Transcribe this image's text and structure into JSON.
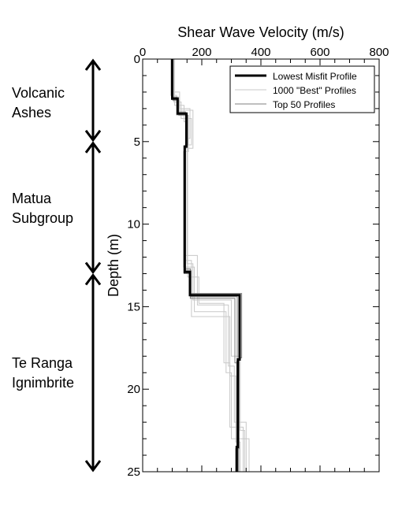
{
  "chart_data": {
    "type": "line",
    "title": "",
    "xlabel": "Shear Wave Velocity (m/s)",
    "ylabel": "Depth (m)",
    "xlim": [
      0,
      800
    ],
    "ylim": [
      0,
      25
    ],
    "y_inverted": true,
    "x_axis_position": "top",
    "grid": false,
    "legend_position": "top-right",
    "xticks": [
      "0",
      "200",
      "400",
      "600",
      "800"
    ],
    "yticks": [
      "0",
      "5",
      "10",
      "15",
      "20",
      "25"
    ],
    "series": [
      {
        "name": "Lowest Misfit Profile",
        "color": "#000000",
        "points": [
          [
            100,
            0
          ],
          [
            100,
            2.4
          ],
          [
            118,
            2.4
          ],
          [
            118,
            3.3
          ],
          [
            148,
            3.3
          ],
          [
            148,
            5.3
          ],
          [
            142,
            5.3
          ],
          [
            142,
            12.9
          ],
          [
            160,
            12.9
          ],
          [
            160,
            14.3
          ],
          [
            328,
            14.3
          ],
          [
            328,
            18.2
          ],
          [
            322,
            18.2
          ],
          [
            322,
            23.5
          ],
          [
            318,
            23.5
          ],
          [
            318,
            25
          ]
        ]
      },
      {
        "name": "1000 \"Best\" Profiles",
        "color": "#c8c8c8",
        "profiles": [
          [
            [
              100,
              0
            ],
            [
              100,
              2.0
            ],
            [
              125,
              2.0
            ],
            [
              125,
              3.0
            ],
            [
              160,
              3.0
            ],
            [
              160,
              4.8
            ],
            [
              150,
              4.8
            ],
            [
              150,
              12.4
            ],
            [
              170,
              12.4
            ],
            [
              170,
              14.6
            ],
            [
              300,
              14.6
            ],
            [
              300,
              18.0
            ],
            [
              330,
              18.0
            ],
            [
              330,
              22.5
            ],
            [
              345,
              22.5
            ],
            [
              345,
              25
            ]
          ],
          [
            [
              105,
              0
            ],
            [
              105,
              2.6
            ],
            [
              130,
              2.6
            ],
            [
              130,
              3.6
            ],
            [
              165,
              3.6
            ],
            [
              165,
              5.2
            ],
            [
              145,
              5.2
            ],
            [
              145,
              11.9
            ],
            [
              185,
              11.9
            ],
            [
              185,
              14.9
            ],
            [
              290,
              14.9
            ],
            [
              290,
              18.6
            ],
            [
              310,
              18.6
            ],
            [
              310,
              22.0
            ],
            [
              350,
              22.0
            ],
            [
              350,
              25
            ]
          ],
          [
            [
              95,
              0
            ],
            [
              95,
              2.2
            ],
            [
              115,
              2.2
            ],
            [
              115,
              3.4
            ],
            [
              155,
              3.4
            ],
            [
              155,
              5.6
            ],
            [
              138,
              5.6
            ],
            [
              138,
              12.6
            ],
            [
              175,
              12.6
            ],
            [
              175,
              15.3
            ],
            [
              282,
              15.3
            ],
            [
              282,
              19.0
            ],
            [
              300,
              19.0
            ],
            [
              300,
              23.0
            ],
            [
              360,
              23.0
            ],
            [
              360,
              25
            ]
          ],
          [
            [
              108,
              0
            ],
            [
              108,
              2.8
            ],
            [
              140,
              2.8
            ],
            [
              140,
              3.8
            ],
            [
              150,
              3.8
            ],
            [
              150,
              5.0
            ],
            [
              152,
              5.0
            ],
            [
              152,
              13.2
            ],
            [
              190,
              13.2
            ],
            [
              190,
              14.8
            ],
            [
              275,
              14.8
            ],
            [
              275,
              18.4
            ],
            [
              295,
              18.4
            ],
            [
              295,
              22.3
            ],
            [
              340,
              22.3
            ],
            [
              340,
              25
            ]
          ],
          [
            [
              98,
              0
            ],
            [
              98,
              2.3
            ],
            [
              122,
              2.3
            ],
            [
              122,
              3.1
            ],
            [
              170,
              3.1
            ],
            [
              170,
              5.4
            ],
            [
              140,
              5.4
            ],
            [
              140,
              12.2
            ],
            [
              165,
              12.2
            ],
            [
              165,
              15.6
            ],
            [
              295,
              15.6
            ],
            [
              295,
              19.2
            ],
            [
              315,
              19.2
            ],
            [
              315,
              23.2
            ],
            [
              330,
              23.2
            ],
            [
              330,
              25
            ]
          ]
        ]
      },
      {
        "name": "Top 50 Profiles",
        "color": "#7f7f7f",
        "profiles": [
          [
            [
              102,
              0
            ],
            [
              102,
              2.5
            ],
            [
              122,
              2.5
            ],
            [
              122,
              3.4
            ],
            [
              152,
              3.4
            ],
            [
              152,
              5.2
            ],
            [
              145,
              5.2
            ],
            [
              145,
              12.8
            ],
            [
              163,
              12.8
            ],
            [
              163,
              14.4
            ],
            [
              320,
              14.4
            ],
            [
              320,
              18.3
            ],
            [
              318,
              18.3
            ],
            [
              318,
              23.4
            ],
            [
              322,
              23.4
            ],
            [
              322,
              25
            ]
          ],
          [
            [
              99,
              0
            ],
            [
              99,
              2.3
            ],
            [
              116,
              2.3
            ],
            [
              116,
              3.2
            ],
            [
              145,
              3.2
            ],
            [
              145,
              5.4
            ],
            [
              140,
              5.4
            ],
            [
              140,
              13.0
            ],
            [
              158,
              13.0
            ],
            [
              158,
              14.2
            ],
            [
              335,
              14.2
            ],
            [
              335,
              18.1
            ],
            [
              326,
              18.1
            ],
            [
              326,
              23.6
            ],
            [
              315,
              23.6
            ],
            [
              315,
              25
            ]
          ],
          [
            [
              101,
              0
            ],
            [
              101,
              2.4
            ],
            [
              120,
              2.4
            ],
            [
              120,
              3.3
            ],
            [
              150,
              3.3
            ],
            [
              150,
              5.3
            ],
            [
              143,
              5.3
            ],
            [
              143,
              12.7
            ],
            [
              161,
              12.7
            ],
            [
              161,
              14.5
            ],
            [
              312,
              14.5
            ],
            [
              312,
              18.4
            ],
            [
              320,
              18.4
            ],
            [
              320,
              23.0
            ],
            [
              325,
              23.0
            ],
            [
              325,
              25
            ]
          ]
        ]
      }
    ],
    "annotations": [
      {
        "label_lines": [
          "Volcanic",
          "Ashes"
        ],
        "depth_range": [
          0,
          5
        ]
      },
      {
        "label_lines": [
          "Matua",
          "Subgroup"
        ],
        "depth_range": [
          5,
          13
        ]
      },
      {
        "label_lines": [
          "Te Ranga",
          "Ignimbrite"
        ],
        "depth_range": [
          13,
          25
        ]
      }
    ]
  }
}
